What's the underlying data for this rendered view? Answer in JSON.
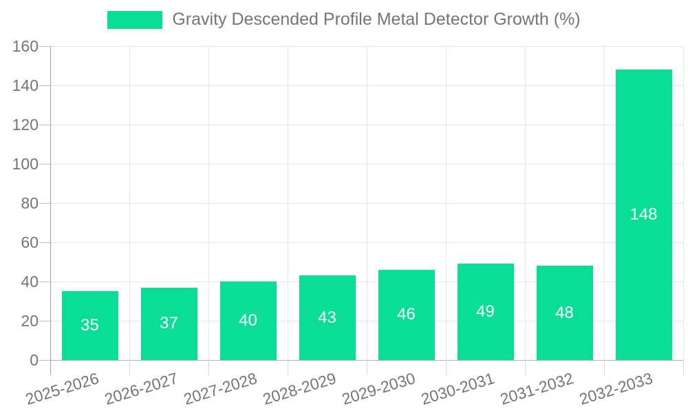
{
  "chart_data": {
    "type": "bar",
    "title": "Gravity Descended Profile Metal Detector Growth (%)",
    "legend": {
      "label": "Gravity Descended Profile Metal Detector Growth (%)",
      "position": "top-center"
    },
    "categories": [
      "2025-2026",
      "2026-2027",
      "2027-2028",
      "2028-2029",
      "2029-2030",
      "2030-2031",
      "2031-2032",
      "2032-2033"
    ],
    "values": [
      35,
      37,
      40,
      43,
      46,
      49,
      48,
      148
    ],
    "yticks": [
      0,
      20,
      40,
      60,
      80,
      100,
      120,
      140,
      160
    ],
    "ylim": [
      0,
      160
    ],
    "xlabel": "",
    "ylabel": "",
    "grid": true,
    "colors": {
      "bar": "#0add96",
      "value_label": "#ffffff",
      "axis_text": "#757575",
      "grid": "#e6e6e6",
      "axis_line": "#9e9e9e"
    }
  }
}
